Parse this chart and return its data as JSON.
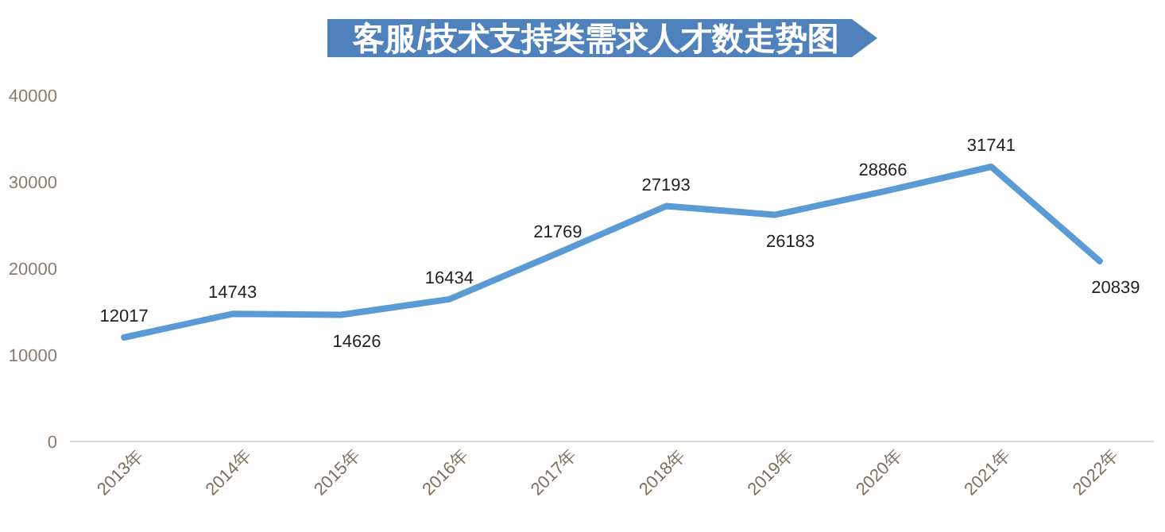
{
  "chart_data": {
    "type": "line",
    "title": "客服/技术支持类需求人才数走势图",
    "categories": [
      "2013年",
      "2014年",
      "2015年",
      "2016年",
      "2017年",
      "2018年",
      "2019年",
      "2020年",
      "2021年",
      "2022年"
    ],
    "values": [
      12017,
      14743,
      14626,
      16434,
      21769,
      27193,
      26183,
      28866,
      31741,
      20839
    ],
    "color": "#5b9bd5",
    "ylim": [
      0,
      40000
    ],
    "yticks": [
      0,
      10000,
      20000,
      30000,
      40000
    ],
    "data_labels": true
  }
}
